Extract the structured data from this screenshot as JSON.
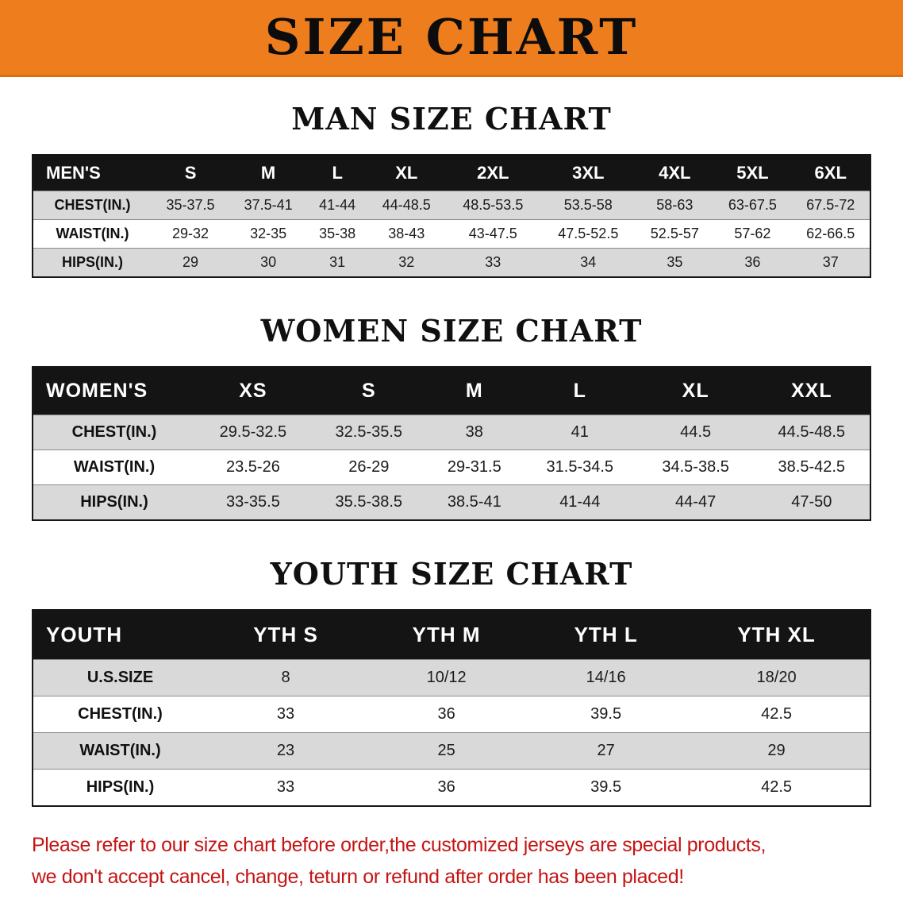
{
  "banner": {
    "title": "SIZE CHART"
  },
  "colors": {
    "banner_bg": "#ee7d1e",
    "header_bg": "#141414",
    "row_alt": "#d9d9d9",
    "notice_red": "#c51414"
  },
  "sections": [
    {
      "heading": "MAN SIZE CHART",
      "name": "mens-size-table",
      "table": {
        "header": [
          "MEN'S",
          "S",
          "M",
          "L",
          "XL",
          "2XL",
          "3XL",
          "4XL",
          "5XL",
          "6XL"
        ],
        "rows": [
          [
            "CHEST(IN.)",
            "35-37.5",
            "37.5-41",
            "41-44",
            "44-48.5",
            "48.5-53.5",
            "53.5-58",
            "58-63",
            "63-67.5",
            "67.5-72"
          ],
          [
            "WAIST(IN.)",
            "29-32",
            "32-35",
            "35-38",
            "38-43",
            "43-47.5",
            "47.5-52.5",
            "52.5-57",
            "57-62",
            "62-66.5"
          ],
          [
            "HIPS(IN.)",
            "29",
            "30",
            "31",
            "32",
            "33",
            "34",
            "35",
            "36",
            "37"
          ]
        ]
      }
    },
    {
      "heading": "WOMEN SIZE CHART",
      "name": "womens-size-table",
      "table": {
        "header": [
          "WOMEN'S",
          "XS",
          "S",
          "M",
          "L",
          "XL",
          "XXL"
        ],
        "rows": [
          [
            "CHEST(IN.)",
            "29.5-32.5",
            "32.5-35.5",
            "38",
            "41",
            "44.5",
            "44.5-48.5"
          ],
          [
            "WAIST(IN.)",
            "23.5-26",
            "26-29",
            "29-31.5",
            "31.5-34.5",
            "34.5-38.5",
            "38.5-42.5"
          ],
          [
            "HIPS(IN.)",
            "33-35.5",
            "35.5-38.5",
            "38.5-41",
            "41-44",
            "44-47",
            "47-50"
          ]
        ]
      }
    },
    {
      "heading": "YOUTH SIZE CHART",
      "name": "youth-size-table",
      "table": {
        "header": [
          "YOUTH",
          "YTH S",
          "YTH M",
          "YTH L",
          "YTH XL"
        ],
        "rows": [
          [
            "U.S.SIZE",
            "8",
            "10/12",
            "14/16",
            "18/20"
          ],
          [
            "CHEST(IN.)",
            "33",
            "36",
            "39.5",
            "42.5"
          ],
          [
            "WAIST(IN.)",
            "23",
            "25",
            "27",
            "29"
          ],
          [
            "HIPS(IN.)",
            "33",
            "36",
            "39.5",
            "42.5"
          ]
        ]
      }
    }
  ],
  "notice": {
    "line1": "Please refer to our size chart before order,the customized jerseys are special products,",
    "line2": "we don't accept cancel, change, teturn or refund after order has been placed!"
  }
}
